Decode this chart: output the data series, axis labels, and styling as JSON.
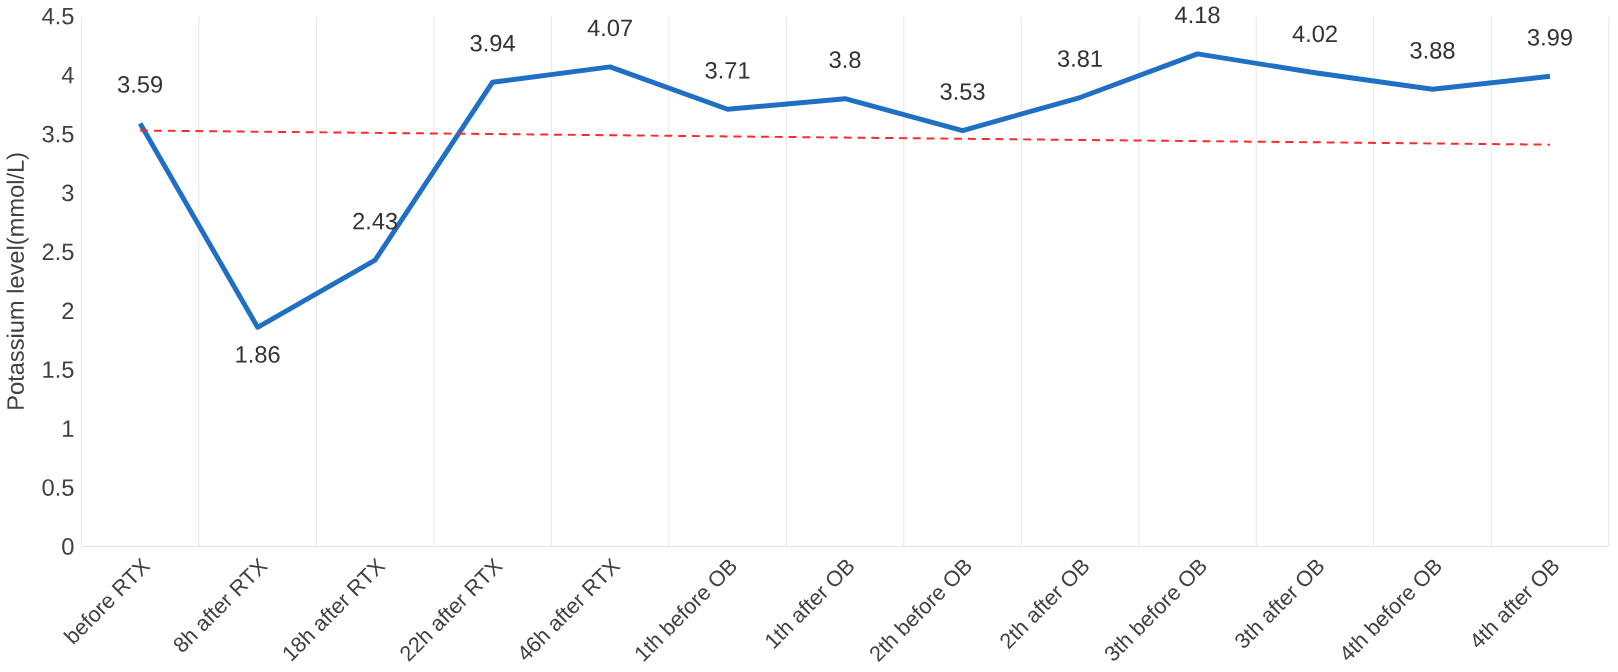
{
  "chart_data": {
    "type": "line",
    "ylabel": "Potassium level(mmol/L)",
    "categories": [
      "before RTX",
      "8h after RTX",
      "18h after RTX",
      "22h after RTX",
      "46h after RTX",
      "1th before OB",
      "1th after OB",
      "2th before OB",
      "2th after OB",
      "3th before OB",
      "3th after OB",
      "4th before OB",
      "4th after OB"
    ],
    "series": [
      {
        "color": "#1f6fc5",
        "values": [
          3.59,
          1.86,
          2.43,
          3.94,
          4.07,
          3.71,
          3.8,
          3.53,
          3.81,
          4.18,
          4.02,
          3.88,
          3.99
        ],
        "value_labels": [
          "3.59",
          "1.86",
          "2.43",
          "3.94",
          "4.07",
          "3.71",
          "3.8",
          "3.53",
          "3.81",
          "4.18",
          "4.02",
          "3.88",
          "3.99"
        ]
      },
      {
        "type": "line",
        "color": "#ff2a2a",
        "line_style": "dashed",
        "values": [
          3.53,
          3.52,
          3.51,
          3.5,
          3.49,
          3.48,
          3.47,
          3.46,
          3.45,
          3.44,
          3.43,
          3.42,
          3.41
        ]
      }
    ],
    "ylim": [
      0,
      4.5
    ],
    "yticks": [
      0,
      0.5,
      1,
      1.5,
      2,
      2.5,
      3,
      3.5,
      4,
      4.5
    ],
    "grid": "x"
  }
}
